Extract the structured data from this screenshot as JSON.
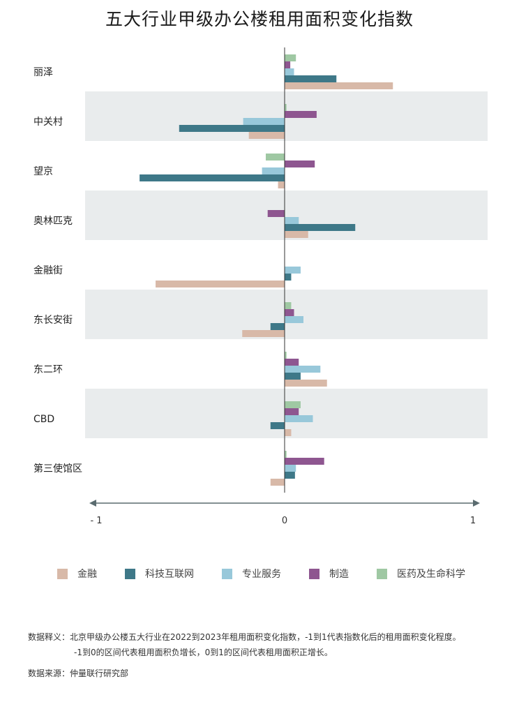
{
  "title": "五大行业甲级办公楼租用面积变化指数",
  "chart_data": {
    "type": "bar",
    "orientation": "horizontal",
    "title": "五大行业甲级办公楼租用面积变化指数",
    "xlim": [
      -1,
      1
    ],
    "tick_labels": [
      "- 1",
      "0",
      "1"
    ],
    "tick_values": [
      -1,
      0,
      1
    ],
    "categories": [
      "丽泽",
      "中关村",
      "望京",
      "奥林匹克",
      "金融街",
      "东长安街",
      "东二环",
      "CBD",
      "第三使馆区"
    ],
    "series": [
      {
        "name": "医药及生命科学",
        "color": "#9fc8a3",
        "values": [
          0.06,
          0.01,
          -0.1,
          0.0,
          0.0,
          0.035,
          0.01,
          0.085,
          0.01
        ]
      },
      {
        "name": "制造",
        "color": "#8e5690",
        "values": [
          0.03,
          0.17,
          0.16,
          -0.09,
          0.0,
          0.05,
          0.075,
          0.075,
          0.21
        ]
      },
      {
        "name": "专业服务",
        "color": "#98c8da",
        "values": [
          0.05,
          -0.22,
          -0.12,
          0.075,
          0.085,
          0.1,
          0.19,
          0.15,
          0.06
        ]
      },
      {
        "name": "科技互联网",
        "color": "#3e7888",
        "values": [
          0.275,
          -0.56,
          -0.77,
          0.375,
          0.035,
          -0.075,
          0.085,
          -0.075,
          0.055
        ]
      },
      {
        "name": "金融",
        "color": "#d8b9a8",
        "values": [
          0.575,
          -0.19,
          -0.035,
          0.125,
          -0.685,
          -0.225,
          0.225,
          0.035,
          -0.075
        ]
      }
    ],
    "legend_order": [
      "金融",
      "科技互联网",
      "专业服务",
      "制造",
      "医药及生命科学"
    ],
    "shaded_rows": [
      1,
      3,
      5,
      7
    ],
    "band_color": "#e9eced",
    "axis_color": "#5a6b6f"
  },
  "notes": {
    "line1": "数据释义：北京甲级办公楼五大行业在2022到2023年租用面积变化指数，-1到1代表指数化后的租用面积变化程度。",
    "line2": "-1到0的区间代表租用面积负增长，0到1的区间代表租用面积正增长。",
    "source": "数据来源：仲量联行研究部"
  }
}
